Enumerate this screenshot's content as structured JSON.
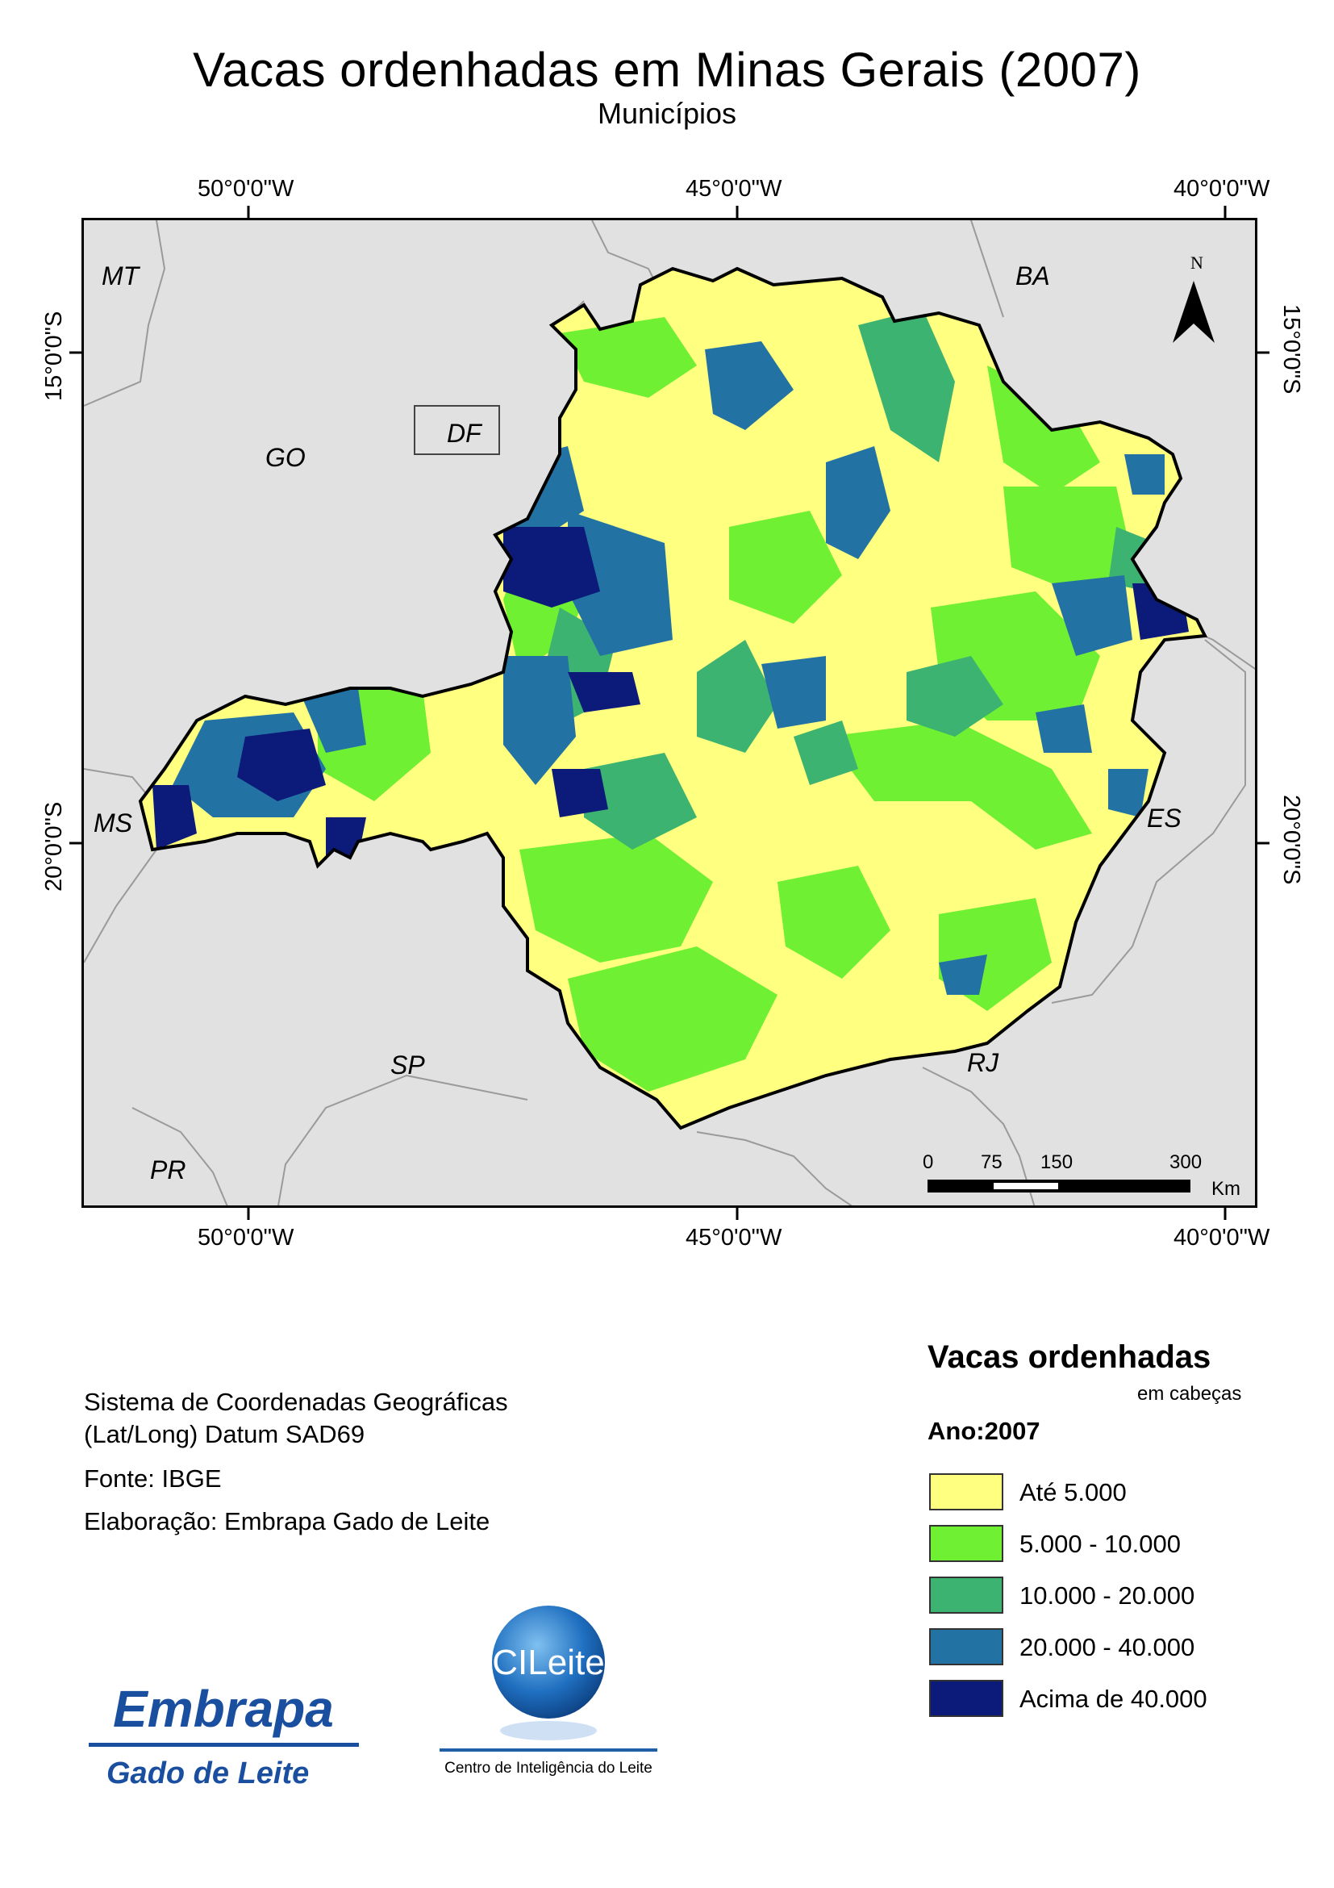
{
  "title": "Vacas ordenhadas em Minas Gerais (2007)",
  "subtitle": "Municípios",
  "grid": {
    "lon_labels": [
      "50°0'0\"W",
      "45°0'0\"W",
      "40°0'0\"W"
    ],
    "lat_labels": [
      "15°0'0\"S",
      "20°0'0\"S"
    ]
  },
  "map": {
    "state_labels": [
      "MT",
      "BA",
      "GO",
      "DF",
      "MS",
      "ES",
      "SP",
      "RJ",
      "PR"
    ],
    "north_label": "N",
    "scale_bar": {
      "ticks": [
        "0",
        "75",
        "150",
        "300"
      ],
      "unit": "Km"
    },
    "colors": {
      "background": "#e1e1e1",
      "state_border": "#000000",
      "neighbor_border": "#9a9a9a"
    }
  },
  "info": {
    "line1": "Sistema de Coordenadas Geográficas",
    "line2": "(Lat/Long) Datum SAD69",
    "source": "Fonte: IBGE",
    "credit": "Elaboração: Embrapa Gado de Leite"
  },
  "legend": {
    "title": "Vacas ordenhadas",
    "unit": "em cabeças",
    "year": "Ano:2007",
    "classes": [
      {
        "label": "Até 5.000",
        "color": "#ffff80"
      },
      {
        "label": "5.000 - 10.000",
        "color": "#6ff032"
      },
      {
        "label": "10.000 - 20.000",
        "color": "#3cb371"
      },
      {
        "label": "20.000 - 40.000",
        "color": "#2372a4"
      },
      {
        "label": "Acima de 40.000",
        "color": "#0c1a7a"
      }
    ]
  },
  "logos": {
    "embrapa_name": "Embrapa",
    "embrapa_sub": "Gado de Leite",
    "cileite_name": "CILeite",
    "cileite_sub": "Centro de Inteligência do Leite"
  }
}
